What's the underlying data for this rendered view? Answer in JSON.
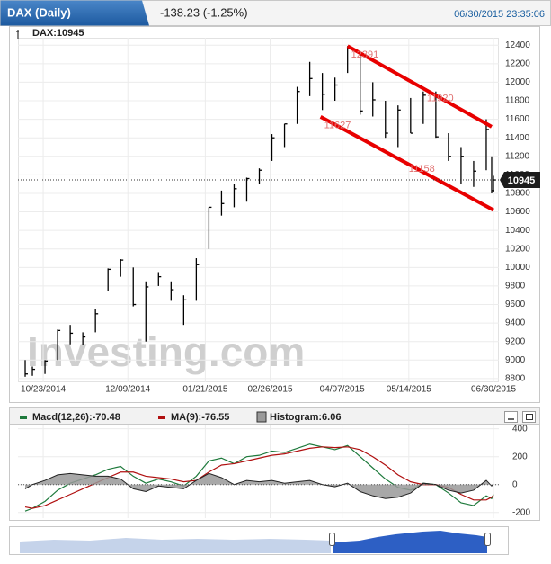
{
  "header": {
    "ticker": "DAX (Daily)",
    "change": "-138.23 (-1.25%)",
    "timestamp": "06/30/2015 23:35:06"
  },
  "chart_data": [
    {
      "type": "ohlc",
      "label": "DAX:10945",
      "watermark": "Investing.com",
      "color": "#000000",
      "x": [
        "10/13/2014",
        "10/17/2014",
        "10/24/2014",
        "10/31/2014",
        "11/07/2014",
        "11/14/2014",
        "11/21/2014",
        "11/28/2014",
        "12/05/2014",
        "12/12/2014",
        "12/19/2014",
        "12/26/2014",
        "01/02/2015",
        "01/09/2015",
        "01/16/2015",
        "01/23/2015",
        "01/30/2015",
        "02/06/2015",
        "02/13/2015",
        "02/20/2015",
        "02/27/2015",
        "03/06/2015",
        "03/13/2015",
        "03/20/2015",
        "03/27/2015",
        "04/03/2015",
        "04/10/2015",
        "04/17/2015",
        "04/24/2015",
        "05/01/2015",
        "05/08/2015",
        "05/15/2015",
        "05/22/2015",
        "05/29/2015",
        "06/05/2015",
        "06/12/2015",
        "06/19/2015",
        "06/26/2015",
        "06/29/2015",
        "06/30/2015"
      ],
      "high": [
        9000,
        8930,
        9000,
        9330,
        9380,
        9300,
        9550,
        9990,
        10090,
        10000,
        9850,
        9950,
        9850,
        9700,
        10100,
        10650,
        10830,
        10900,
        10970,
        11070,
        11440,
        11550,
        11950,
        12220,
        12100,
        12050,
        12390,
        12300,
        12000,
        11800,
        11750,
        11830,
        11900,
        11900,
        11450,
        11300,
        11150,
        11600,
        11200,
        10990
      ],
      "low": [
        8820,
        8830,
        8850,
        9000,
        9170,
        9160,
        9300,
        9750,
        9900,
        9580,
        9200,
        9800,
        9640,
        9380,
        9640,
        10200,
        10560,
        10650,
        10710,
        10900,
        11150,
        11300,
        11550,
        11850,
        11700,
        11800,
        12100,
        11650,
        11630,
        11400,
        11300,
        11450,
        11550,
        11400,
        11150,
        10900,
        10870,
        11050,
        10800,
        10810
      ],
      "close": [
        8850,
        8900,
        8990,
        9320,
        9290,
        9250,
        9500,
        9980,
        10080,
        9600,
        9790,
        9900,
        9760,
        9650,
        10030,
        10650,
        10690,
        10850,
        10960,
        11050,
        11400,
        11550,
        11900,
        12040,
        11870,
        11970,
        12370,
        11690,
        11810,
        11450,
        11700,
        11450,
        11860,
        11410,
        11200,
        11200,
        11040,
        11490,
        10830,
        10945
      ],
      "xlim": [
        "10/09/2014",
        "07/03/2015"
      ],
      "xticks": [
        "10/23/2014",
        "12/09/2014",
        "01/21/2015",
        "02/26/2015",
        "04/07/2015",
        "05/14/2015",
        "06/30/2015"
      ],
      "ylim": [
        8760,
        12480
      ],
      "yticks": [
        8800,
        9000,
        9200,
        9400,
        9600,
        9800,
        10000,
        10200,
        10400,
        10600,
        10800,
        11000,
        11200,
        11400,
        11600,
        11800,
        12000,
        12200,
        12400
      ],
      "grid": true,
      "last_price": 10945,
      "trendlines": [
        {
          "color": "#e80000",
          "x": [
            "04/10/2015",
            "06/29/2015"
          ],
          "y": [
            12390,
            11520
          ]
        },
        {
          "color": "#e80000",
          "x": [
            "03/26/2015",
            "06/30/2015"
          ],
          "y": [
            11627,
            10620
          ]
        }
      ],
      "annotations": [
        {
          "value": 12391,
          "x": "04/10/2015"
        },
        {
          "value": 11627,
          "x": "03/26/2015"
        },
        {
          "value": 11920,
          "x": "05/22/2015"
        },
        {
          "value": 11158,
          "x": "05/12/2015"
        }
      ],
      "annotation_color": "#e07070"
    },
    {
      "type": "macd",
      "series": [
        {
          "name": "Macd(12,26):-70.48",
          "color": "#1e7a3c",
          "values": [
            -190,
            -170,
            -120,
            -40,
            10,
            40,
            70,
            110,
            130,
            60,
            10,
            40,
            20,
            -10,
            60,
            170,
            190,
            150,
            200,
            210,
            240,
            230,
            260,
            290,
            270,
            250,
            280,
            200,
            120,
            40,
            -20,
            -40,
            10,
            0,
            -60,
            -130,
            -150,
            -80,
            -100,
            -70.48
          ]
        },
        {
          "name": "MA(9):-76.55",
          "color": "#b01010",
          "values": [
            -160,
            -170,
            -150,
            -110,
            -70,
            -30,
            10,
            50,
            90,
            90,
            60,
            50,
            40,
            20,
            30,
            90,
            140,
            150,
            170,
            190,
            210,
            220,
            240,
            260,
            270,
            265,
            270,
            250,
            200,
            140,
            70,
            20,
            0,
            0,
            -20,
            -70,
            -110,
            -110,
            -90,
            -76.55
          ]
        },
        {
          "name": "Histogram:6.06",
          "color": "#999999",
          "values": [
            -30,
            0,
            30,
            70,
            80,
            70,
            60,
            60,
            40,
            -30,
            -50,
            -10,
            -20,
            -30,
            30,
            80,
            50,
            0,
            30,
            20,
            30,
            10,
            20,
            30,
            0,
            -15,
            10,
            -50,
            -80,
            -100,
            -90,
            -60,
            10,
            0,
            -40,
            -60,
            -40,
            30,
            -10,
            6.06
          ]
        }
      ],
      "ylim": [
        -240,
        430
      ],
      "yticks": [
        -200,
        0,
        200,
        400
      ]
    }
  ]
}
